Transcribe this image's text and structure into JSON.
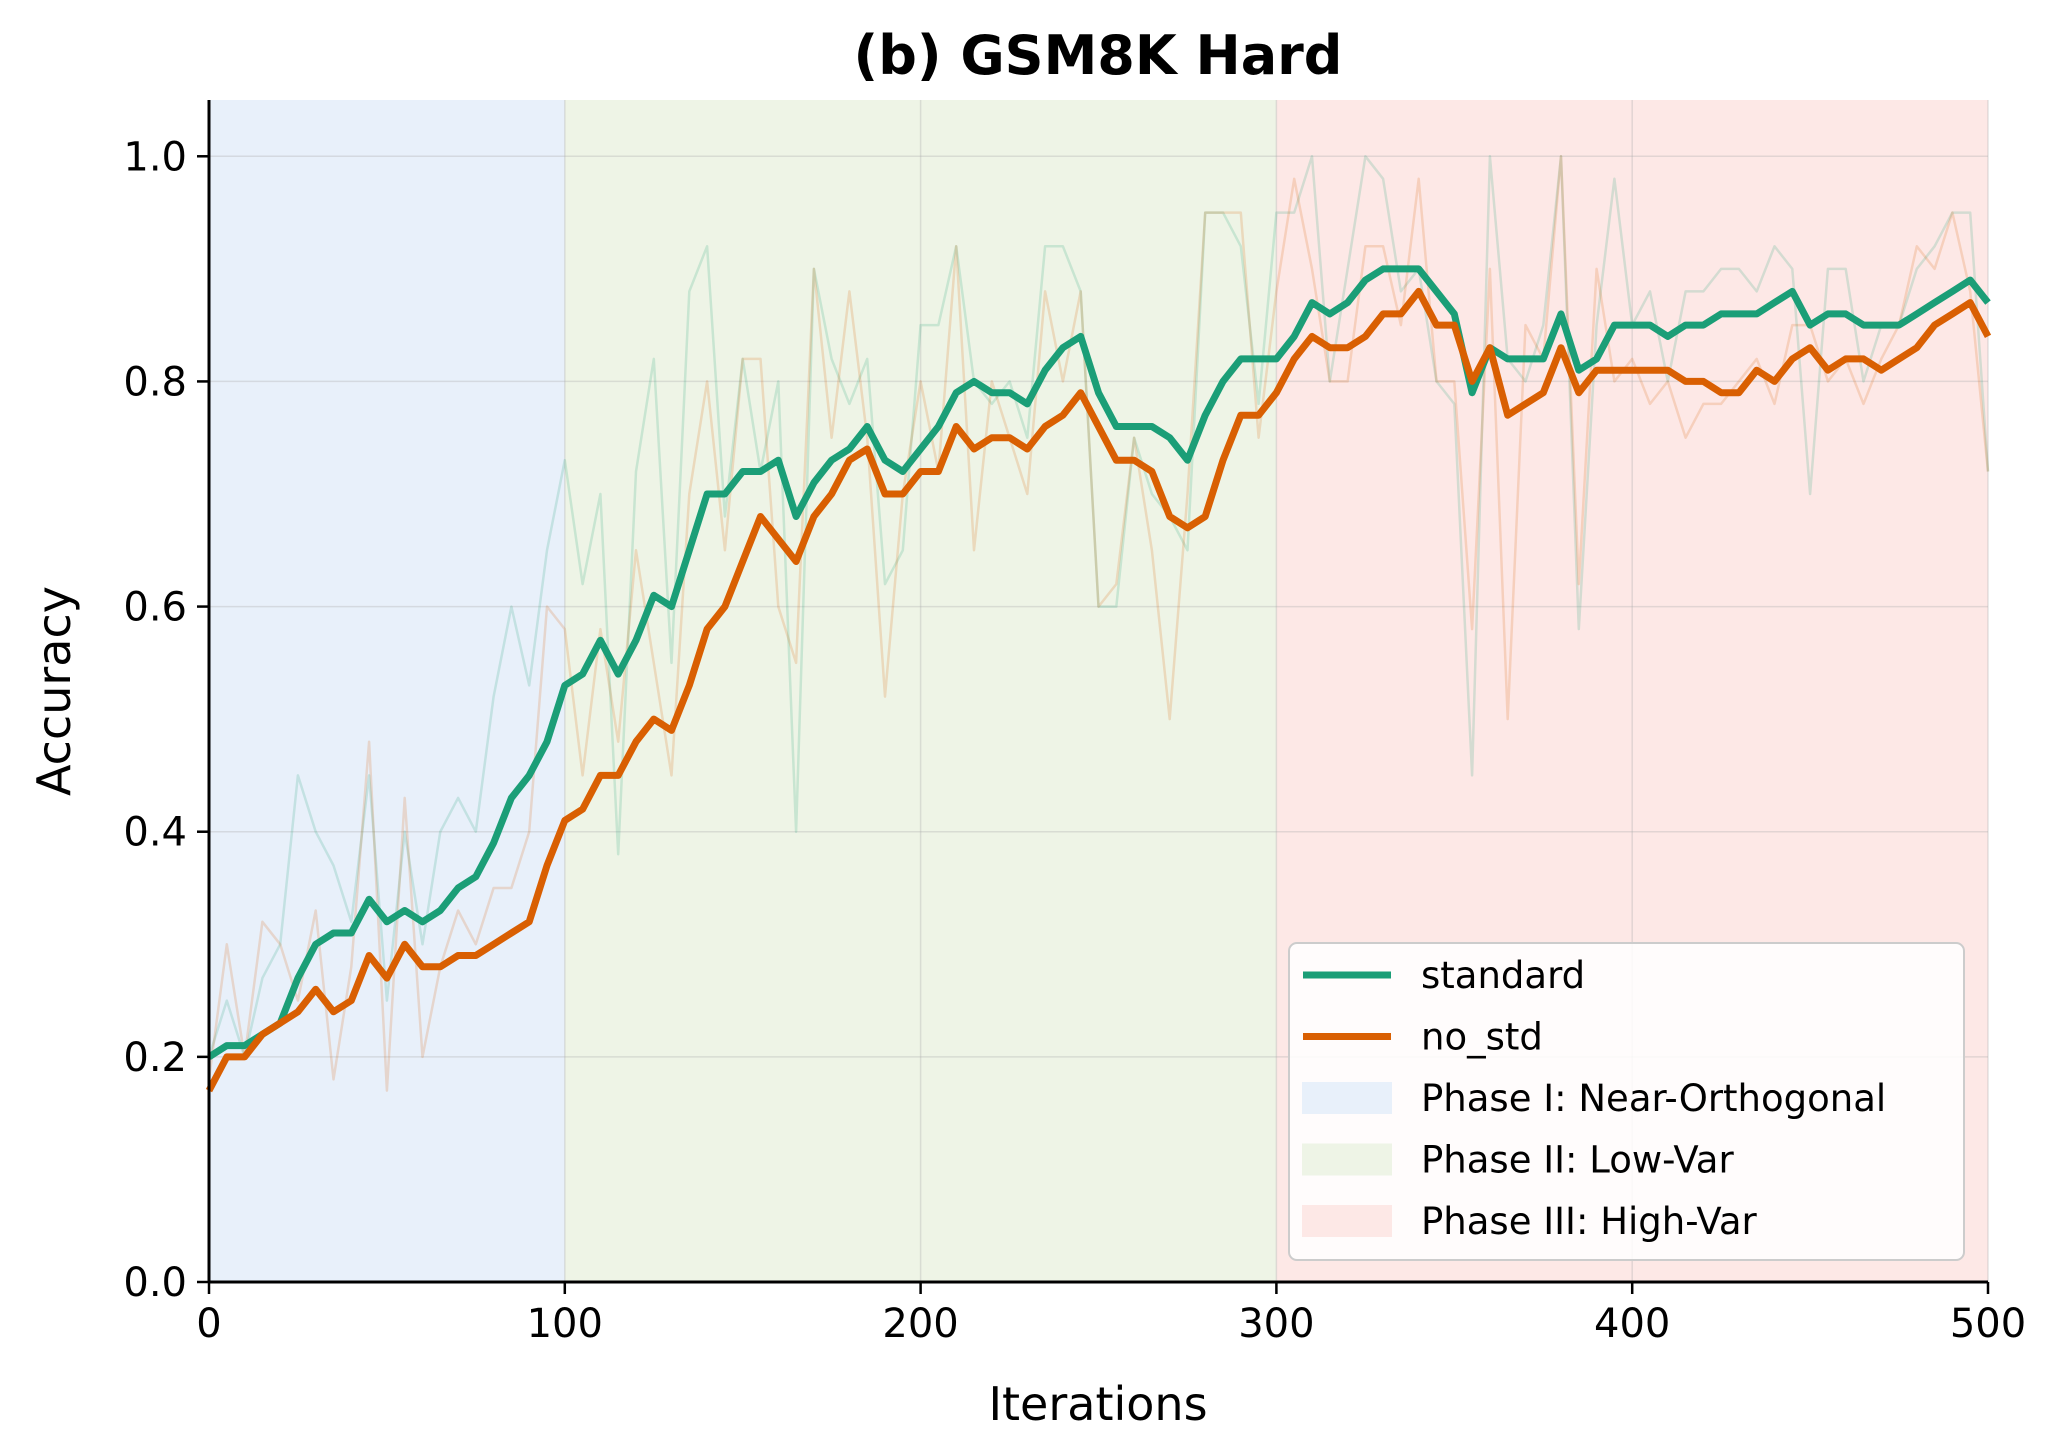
{
  "chart_data": {
    "type": "line",
    "title": "(b) GSM8K Hard",
    "xlabel": "Iterations",
    "ylabel": "Accuracy",
    "xlim": [
      0,
      500
    ],
    "ylim": [
      0,
      1.05
    ],
    "x_ticks": [
      0,
      100,
      200,
      300,
      400,
      500
    ],
    "y_ticks": [
      0.0,
      0.2,
      0.4,
      0.6,
      0.8,
      1.0
    ],
    "x_tick_labels": [
      "0",
      "100",
      "200",
      "300",
      "400",
      "500"
    ],
    "y_tick_labels": [
      "0.0",
      "0.2",
      "0.4",
      "0.6",
      "0.8",
      "1.0"
    ],
    "grid": true,
    "legend_position": "lower-right",
    "phases": [
      {
        "name": "Phase I: Near-Orthogonal",
        "x_start": 0,
        "x_end": 100,
        "color": "#e8f0fa"
      },
      {
        "name": "Phase II: Low-Var",
        "x_start": 100,
        "x_end": 300,
        "color": "#eef4e6"
      },
      {
        "name": "Phase III: High-Var",
        "x_start": 300,
        "x_end": 500,
        "color": "#fde8e6"
      }
    ],
    "x": [
      0,
      5,
      10,
      15,
      20,
      25,
      30,
      35,
      40,
      45,
      50,
      55,
      60,
      65,
      70,
      75,
      80,
      85,
      90,
      95,
      100,
      105,
      110,
      115,
      120,
      125,
      130,
      135,
      140,
      145,
      150,
      155,
      160,
      165,
      170,
      175,
      180,
      185,
      190,
      195,
      200,
      205,
      210,
      215,
      220,
      225,
      230,
      235,
      240,
      245,
      250,
      255,
      260,
      265,
      270,
      275,
      280,
      285,
      290,
      295,
      300,
      305,
      310,
      315,
      320,
      325,
      330,
      335,
      340,
      345,
      350,
      355,
      360,
      365,
      370,
      375,
      380,
      385,
      390,
      395,
      400,
      405,
      410,
      415,
      420,
      425,
      430,
      435,
      440,
      445,
      450,
      455,
      460,
      465,
      470,
      475,
      480,
      485,
      490,
      495,
      500
    ],
    "series": [
      {
        "name": "standard",
        "color": "#1b9e77",
        "smoothed": [
          0.2,
          0.21,
          0.21,
          0.22,
          0.23,
          0.27,
          0.3,
          0.31,
          0.31,
          0.34,
          0.32,
          0.33,
          0.32,
          0.33,
          0.35,
          0.36,
          0.39,
          0.43,
          0.45,
          0.48,
          0.53,
          0.54,
          0.57,
          0.54,
          0.57,
          0.61,
          0.6,
          0.65,
          0.7,
          0.7,
          0.72,
          0.72,
          0.73,
          0.68,
          0.71,
          0.73,
          0.74,
          0.76,
          0.73,
          0.72,
          0.74,
          0.76,
          0.79,
          0.8,
          0.79,
          0.79,
          0.78,
          0.81,
          0.83,
          0.84,
          0.79,
          0.76,
          0.76,
          0.76,
          0.75,
          0.73,
          0.77,
          0.8,
          0.82,
          0.82,
          0.82,
          0.84,
          0.87,
          0.86,
          0.87,
          0.89,
          0.9,
          0.9,
          0.9,
          0.88,
          0.86,
          0.79,
          0.83,
          0.82,
          0.82,
          0.82,
          0.86,
          0.81,
          0.82,
          0.85,
          0.85,
          0.85,
          0.84,
          0.85,
          0.85,
          0.86,
          0.86,
          0.86,
          0.87,
          0.88,
          0.85,
          0.86,
          0.86,
          0.85,
          0.85,
          0.85,
          0.86,
          0.87,
          0.88,
          0.89,
          0.87
        ],
        "raw": [
          0.2,
          0.25,
          0.2,
          0.27,
          0.3,
          0.45,
          0.4,
          0.37,
          0.32,
          0.45,
          0.25,
          0.4,
          0.3,
          0.4,
          0.43,
          0.4,
          0.52,
          0.6,
          0.53,
          0.65,
          0.73,
          0.62,
          0.7,
          0.38,
          0.72,
          0.82,
          0.55,
          0.88,
          0.92,
          0.68,
          0.82,
          0.72,
          0.8,
          0.4,
          0.9,
          0.82,
          0.78,
          0.82,
          0.62,
          0.65,
          0.85,
          0.85,
          0.92,
          0.8,
          0.78,
          0.8,
          0.75,
          0.92,
          0.92,
          0.88,
          0.6,
          0.6,
          0.75,
          0.7,
          0.68,
          0.65,
          0.95,
          0.95,
          0.92,
          0.78,
          0.95,
          0.95,
          1.0,
          0.8,
          0.9,
          1.0,
          0.98,
          0.88,
          0.9,
          0.8,
          0.78,
          0.45,
          1.0,
          0.82,
          0.8,
          0.85,
          1.0,
          0.58,
          0.85,
          0.98,
          0.85,
          0.88,
          0.8,
          0.88,
          0.88,
          0.9,
          0.9,
          0.88,
          0.92,
          0.9,
          0.7,
          0.9,
          0.9,
          0.8,
          0.85,
          0.85,
          0.9,
          0.92,
          0.95,
          0.95,
          0.72
        ]
      },
      {
        "name": "no_std",
        "color": "#d95f02",
        "smoothed": [
          0.17,
          0.2,
          0.2,
          0.22,
          0.23,
          0.24,
          0.26,
          0.24,
          0.25,
          0.29,
          0.27,
          0.3,
          0.28,
          0.28,
          0.29,
          0.29,
          0.3,
          0.31,
          0.32,
          0.37,
          0.41,
          0.42,
          0.45,
          0.45,
          0.48,
          0.5,
          0.49,
          0.53,
          0.58,
          0.6,
          0.64,
          0.68,
          0.66,
          0.64,
          0.68,
          0.7,
          0.73,
          0.74,
          0.7,
          0.7,
          0.72,
          0.72,
          0.76,
          0.74,
          0.75,
          0.75,
          0.74,
          0.76,
          0.77,
          0.79,
          0.76,
          0.73,
          0.73,
          0.72,
          0.68,
          0.67,
          0.68,
          0.73,
          0.77,
          0.77,
          0.79,
          0.82,
          0.84,
          0.83,
          0.83,
          0.84,
          0.86,
          0.86,
          0.88,
          0.85,
          0.85,
          0.8,
          0.83,
          0.77,
          0.78,
          0.79,
          0.83,
          0.79,
          0.81,
          0.81,
          0.81,
          0.81,
          0.81,
          0.8,
          0.8,
          0.79,
          0.79,
          0.81,
          0.8,
          0.82,
          0.83,
          0.81,
          0.82,
          0.82,
          0.81,
          0.82,
          0.83,
          0.85,
          0.86,
          0.87,
          0.84
        ],
        "raw": [
          0.18,
          0.3,
          0.2,
          0.32,
          0.3,
          0.25,
          0.33,
          0.18,
          0.28,
          0.48,
          0.17,
          0.43,
          0.2,
          0.28,
          0.33,
          0.3,
          0.35,
          0.35,
          0.4,
          0.6,
          0.58,
          0.45,
          0.58,
          0.48,
          0.65,
          0.55,
          0.45,
          0.7,
          0.8,
          0.65,
          0.82,
          0.82,
          0.6,
          0.55,
          0.9,
          0.75,
          0.88,
          0.75,
          0.52,
          0.7,
          0.8,
          0.72,
          0.92,
          0.65,
          0.8,
          0.75,
          0.7,
          0.88,
          0.8,
          0.88,
          0.6,
          0.62,
          0.75,
          0.65,
          0.5,
          0.7,
          0.95,
          0.95,
          0.95,
          0.75,
          0.88,
          0.98,
          0.9,
          0.8,
          0.8,
          0.92,
          0.92,
          0.85,
          0.98,
          0.8,
          0.8,
          0.58,
          0.9,
          0.5,
          0.85,
          0.82,
          1.0,
          0.62,
          0.9,
          0.8,
          0.82,
          0.78,
          0.8,
          0.75,
          0.78,
          0.78,
          0.8,
          0.82,
          0.78,
          0.85,
          0.85,
          0.8,
          0.82,
          0.78,
          0.82,
          0.85,
          0.92,
          0.9,
          0.95,
          0.88,
          0.72
        ]
      }
    ]
  }
}
